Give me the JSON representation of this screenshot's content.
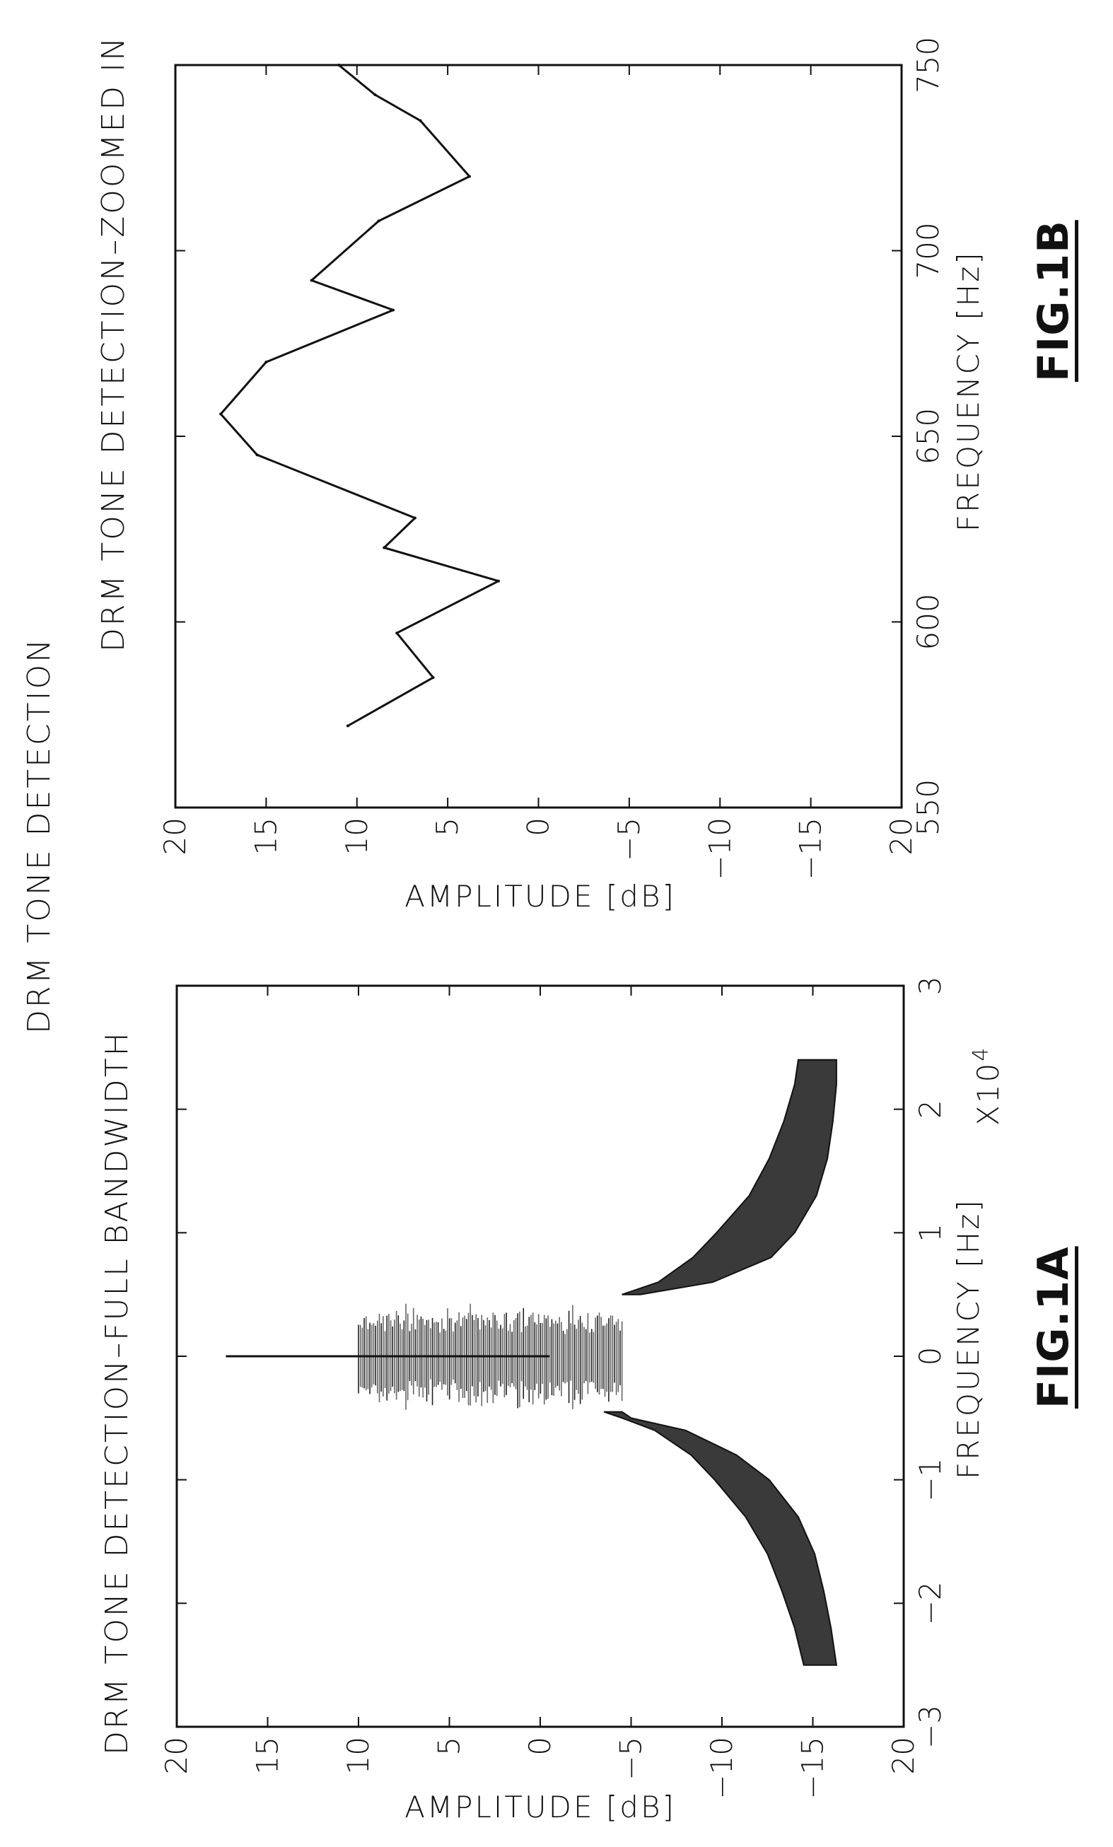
{
  "main_title": "DRM TONE DETECTION",
  "fig_a": {
    "title": "DRM TONE DETECTION–FULL BANDWIDTH",
    "ylabel": "AMPLITUDE [dB]",
    "xlabel": "FREQUENCY [Hz]",
    "x_exponent_base": "X10",
    "x_exponent_power": "4",
    "fig_label": "FIG.1A"
  },
  "fig_b": {
    "title": "DRM TONE DETECTION–ZOOMED IN",
    "ylabel": "AMPLITUDE [dB]",
    "xlabel": "FREQUENCY [Hz]",
    "fig_label": "FIG.1B"
  },
  "chart_data": [
    {
      "type": "area",
      "title": "DRM TONE DETECTION–FULL BANDWIDTH",
      "xlabel": "FREQUENCY [Hz]",
      "ylabel": "AMPLITUDE [dB]",
      "xlim": [
        -3,
        3
      ],
      "ylim": [
        -20,
        20
      ],
      "xticks": [
        "−3",
        "−2",
        "−1",
        "0",
        "1",
        "2",
        "3"
      ],
      "yticks": [
        "20",
        "15",
        "10",
        "5",
        "0",
        "−5",
        "−10",
        "−15",
        "20"
      ],
      "x_scale_note": "X10^4",
      "spike": {
        "x": 0.0,
        "y_top": 17.3,
        "y_bottom": -0.5
      },
      "upper_envelope": {
        "x": [
          -2.5,
          -2.2,
          -1.9,
          -1.6,
          -1.3,
          -1.0,
          -0.8,
          -0.6,
          -0.5,
          -0.45,
          -0.3,
          -0.1,
          0.0,
          0.1,
          0.3,
          0.45,
          0.5,
          0.6,
          0.8,
          1.0,
          1.3,
          1.6,
          1.9,
          2.2,
          2.4
        ],
        "y": [
          -14.5,
          -14.0,
          -13.3,
          -12.5,
          -11.3,
          -9.6,
          -8.3,
          -6.3,
          -4.5,
          -3.5,
          9.5,
          10.0,
          10.0,
          10.0,
          10.5,
          9.0,
          -4.5,
          -6.5,
          -8.4,
          -9.7,
          -11.5,
          -12.6,
          -13.4,
          -14.0,
          -14.2
        ]
      },
      "lower_envelope": {
        "x": [
          -2.5,
          -2.2,
          -1.9,
          -1.6,
          -1.3,
          -1.0,
          -0.8,
          -0.6,
          -0.5,
          -0.45,
          -0.3,
          -0.1,
          0.0,
          0.1,
          0.3,
          0.45,
          0.5,
          0.6,
          0.8,
          1.0,
          1.3,
          1.6,
          1.9,
          2.2,
          2.4
        ],
        "y": [
          -16.3,
          -16.0,
          -15.6,
          -15.1,
          -14.2,
          -12.6,
          -10.8,
          -8.0,
          -5.0,
          -4.5,
          -1.8,
          -0.2,
          -0.5,
          -1.0,
          -3.0,
          -3.8,
          -5.5,
          -9.5,
          -12.7,
          -14.0,
          -15.2,
          -15.8,
          -16.1,
          -16.3,
          -16.3
        ]
      }
    },
    {
      "type": "line",
      "title": "DRM TONE DETECTION–ZOOMED IN",
      "xlabel": "FREQUENCY [Hz]",
      "ylabel": "AMPLITUDE [dB]",
      "xlim": [
        550,
        750
      ],
      "ylim": [
        -20,
        20
      ],
      "xticks": [
        "550",
        "600",
        "650",
        "700",
        "750"
      ],
      "yticks": [
        "20",
        "15",
        "10",
        "5",
        "0",
        "−5",
        "−10",
        "−15",
        "20"
      ],
      "x": [
        572,
        585,
        597,
        611,
        620,
        628,
        645,
        656,
        670,
        684,
        692,
        708,
        720,
        735,
        742,
        750
      ],
      "y": [
        10.5,
        5.8,
        7.8,
        2.2,
        8.5,
        6.8,
        15.5,
        17.5,
        15.0,
        8.0,
        12.5,
        8.8,
        3.8,
        6.5,
        9.0,
        11.0
      ]
    }
  ]
}
